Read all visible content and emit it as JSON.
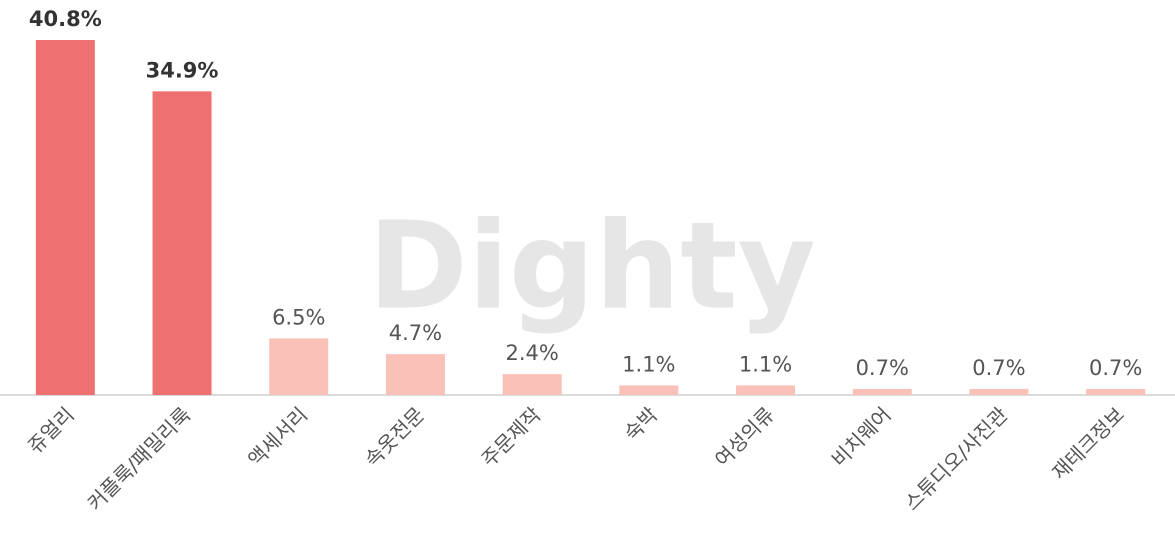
{
  "chart_data": {
    "type": "bar",
    "watermark": "Dighty",
    "categories": [
      "쥬얼리",
      "커플룩/패밀리룩",
      "액세서리",
      "속옷전문",
      "주문제작",
      "숙박",
      "여성의류",
      "비치웨어",
      "스튜디오/사진관",
      "재테크정보"
    ],
    "values": [
      40.8,
      34.9,
      6.5,
      4.7,
      2.4,
      1.1,
      1.1,
      0.7,
      0.7,
      0.7
    ],
    "value_labels": [
      "40.8%",
      "34.9%",
      "6.5%",
      "4.7%",
      "2.4%",
      "1.1%",
      "1.1%",
      "0.7%",
      "0.7%",
      "0.7%"
    ],
    "colors": [
      "#ee7070",
      "#ee7070",
      "#f9c1b8",
      "#f9c1b8",
      "#f9c1b8",
      "#f9c1b8",
      "#f9c1b8",
      "#f9c1b8",
      "#f9c1b8",
      "#f9c1b8"
    ],
    "highlight_color": "#ee7070"
  }
}
